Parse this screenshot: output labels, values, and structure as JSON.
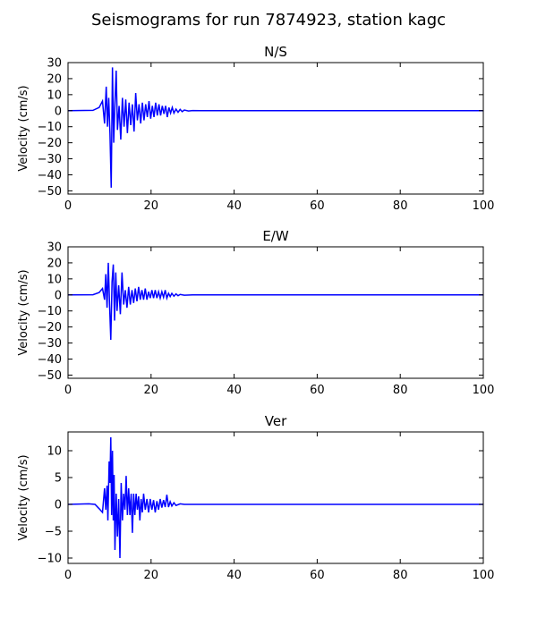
{
  "figure": {
    "title": "Seismograms for run 7874923, station kagc"
  },
  "chart_data": [
    {
      "type": "line",
      "title": "N/S",
      "xlabel": "",
      "ylabel": "Velocity (cm/s)",
      "xlim": [
        0,
        100
      ],
      "ylim": [
        -52,
        30
      ],
      "xticks": [
        0,
        20,
        40,
        60,
        80,
        100
      ],
      "yticks": [
        -50,
        -40,
        -30,
        -20,
        -10,
        0,
        10,
        20,
        30
      ],
      "grid": false,
      "color": "#0000ff",
      "series": [
        {
          "values": [
            [
              0,
              0
            ],
            [
              6,
              0.2
            ],
            [
              7.5,
              2
            ],
            [
              8.3,
              6
            ],
            [
              8.8,
              -8
            ],
            [
              9.2,
              15
            ],
            [
              9.5,
              -10
            ],
            [
              9.8,
              8
            ],
            [
              10.1,
              -14
            ],
            [
              10.4,
              -48
            ],
            [
              10.7,
              27
            ],
            [
              11,
              -20
            ],
            [
              11.3,
              5
            ],
            [
              11.6,
              25
            ],
            [
              11.9,
              -12
            ],
            [
              12.3,
              3
            ],
            [
              12.7,
              -18
            ],
            [
              13.1,
              8
            ],
            [
              13.5,
              -10
            ],
            [
              13.9,
              7
            ],
            [
              14.3,
              -14
            ],
            [
              14.7,
              5
            ],
            [
              15.1,
              -9
            ],
            [
              15.5,
              4
            ],
            [
              15.9,
              -13
            ],
            [
              16.3,
              11
            ],
            [
              16.7,
              -6
            ],
            [
              17.1,
              4
            ],
            [
              17.5,
              -8
            ],
            [
              17.9,
              5
            ],
            [
              18.3,
              -6
            ],
            [
              18.7,
              4
            ],
            [
              19.1,
              -4
            ],
            [
              19.5,
              6
            ],
            [
              19.9,
              -5
            ],
            [
              20.3,
              3
            ],
            [
              20.7,
              -4
            ],
            [
              21.1,
              5
            ],
            [
              21.5,
              -3
            ],
            [
              21.9,
              4
            ],
            [
              22.3,
              -3
            ],
            [
              22.7,
              3
            ],
            [
              23.1,
              -2
            ],
            [
              23.5,
              3
            ],
            [
              23.9,
              -4
            ],
            [
              24.3,
              2
            ],
            [
              24.7,
              -1.5
            ],
            [
              25.1,
              2
            ],
            [
              25.5,
              -1.5
            ],
            [
              26,
              1
            ],
            [
              26.5,
              -1
            ],
            [
              27,
              0.8
            ],
            [
              27.5,
              -0.6
            ],
            [
              28,
              0.4
            ],
            [
              29,
              -0.2
            ],
            [
              30,
              0.1
            ],
            [
              32,
              0
            ],
            [
              100,
              0
            ]
          ]
        }
      ]
    },
    {
      "type": "line",
      "title": "E/W",
      "xlabel": "",
      "ylabel": "Velocity (cm/s)",
      "xlim": [
        0,
        100
      ],
      "ylim": [
        -52,
        30
      ],
      "xticks": [
        0,
        20,
        40,
        60,
        80,
        100
      ],
      "yticks": [
        -50,
        -40,
        -30,
        -20,
        -10,
        0,
        10,
        20,
        30
      ],
      "grid": false,
      "color": "#0000ff",
      "series": [
        {
          "values": [
            [
              0,
              0
            ],
            [
              6,
              0.1
            ],
            [
              7.5,
              1.5
            ],
            [
              8.3,
              4
            ],
            [
              8.8,
              -3
            ],
            [
              9.1,
              13
            ],
            [
              9.4,
              -8
            ],
            [
              9.7,
              20
            ],
            [
              10.0,
              -6
            ],
            [
              10.3,
              -28
            ],
            [
              10.6,
              8
            ],
            [
              10.9,
              19
            ],
            [
              11.2,
              -16
            ],
            [
              11.5,
              14
            ],
            [
              11.8,
              -10
            ],
            [
              12.2,
              6
            ],
            [
              12.6,
              -12
            ],
            [
              13,
              14
            ],
            [
              13.4,
              -6
            ],
            [
              13.8,
              3
            ],
            [
              14.2,
              -8
            ],
            [
              14.6,
              5
            ],
            [
              15,
              -6
            ],
            [
              15.4,
              3
            ],
            [
              15.8,
              -5
            ],
            [
              16.2,
              4
            ],
            [
              16.6,
              -4
            ],
            [
              17,
              5
            ],
            [
              17.4,
              -3
            ],
            [
              17.8,
              3
            ],
            [
              18.2,
              -3
            ],
            [
              18.6,
              4
            ],
            [
              19,
              -3
            ],
            [
              19.4,
              2
            ],
            [
              19.8,
              -2
            ],
            [
              20.2,
              3
            ],
            [
              20.6,
              -2
            ],
            [
              21,
              3
            ],
            [
              21.4,
              -2
            ],
            [
              21.8,
              2
            ],
            [
              22.2,
              -2
            ],
            [
              22.6,
              2
            ],
            [
              23,
              -1.5
            ],
            [
              23.4,
              3
            ],
            [
              23.8,
              -2
            ],
            [
              24.2,
              1
            ],
            [
              24.6,
              -1
            ],
            [
              25,
              1
            ],
            [
              25.5,
              -0.8
            ],
            [
              26,
              0.6
            ],
            [
              26.5,
              -0.5
            ],
            [
              27,
              0.3
            ],
            [
              28,
              -0.2
            ],
            [
              30,
              0
            ],
            [
              100,
              0
            ]
          ]
        }
      ]
    },
    {
      "type": "line",
      "title": "Ver",
      "xlabel": "",
      "ylabel": "Velocity (cm/s)",
      "xlim": [
        0,
        100
      ],
      "ylim": [
        -11,
        13.5
      ],
      "xticks": [
        0,
        20,
        40,
        60,
        80,
        100
      ],
      "yticks": [
        -10,
        -5,
        0,
        5,
        10
      ],
      "grid": false,
      "color": "#0000ff",
      "series": [
        {
          "values": [
            [
              0,
              0
            ],
            [
              5,
              0.1
            ],
            [
              6.5,
              0
            ],
            [
              7.5,
              -0.8
            ],
            [
              8.3,
              -1.5
            ],
            [
              8.8,
              3
            ],
            [
              9.1,
              -1
            ],
            [
              9.4,
              3.5
            ],
            [
              9.6,
              -3
            ],
            [
              9.9,
              8
            ],
            [
              10.1,
              4
            ],
            [
              10.3,
              12.5
            ],
            [
              10.5,
              -2
            ],
            [
              10.7,
              10
            ],
            [
              10.9,
              -3
            ],
            [
              11.1,
              5.5
            ],
            [
              11.3,
              -8.5
            ],
            [
              11.6,
              2
            ],
            [
              11.9,
              -6
            ],
            [
              12.2,
              1
            ],
            [
              12.5,
              -10
            ],
            [
              12.8,
              4
            ],
            [
              13.1,
              -3
            ],
            [
              13.4,
              2
            ],
            [
              13.7,
              -1
            ],
            [
              14,
              5.3
            ],
            [
              14.3,
              -2
            ],
            [
              14.6,
              3
            ],
            [
              14.9,
              -2
            ],
            [
              15.2,
              2
            ],
            [
              15.5,
              -5.3
            ],
            [
              15.8,
              2
            ],
            [
              16.1,
              -2
            ],
            [
              16.4,
              2
            ],
            [
              16.7,
              -1
            ],
            [
              17,
              1.5
            ],
            [
              17.3,
              -3
            ],
            [
              17.6,
              1
            ],
            [
              17.9,
              -1.5
            ],
            [
              18.2,
              2
            ],
            [
              18.6,
              -1
            ],
            [
              19,
              1
            ],
            [
              19.4,
              -1.5
            ],
            [
              19.8,
              1
            ],
            [
              20.2,
              -1
            ],
            [
              20.6,
              0.8
            ],
            [
              21,
              -1.5
            ],
            [
              21.4,
              0.6
            ],
            [
              21.8,
              -1
            ],
            [
              22.2,
              1
            ],
            [
              22.6,
              -0.6
            ],
            [
              23,
              0.8
            ],
            [
              23.4,
              -0.5
            ],
            [
              23.8,
              1.8
            ],
            [
              24.2,
              -0.5
            ],
            [
              24.6,
              0.5
            ],
            [
              25,
              -0.3
            ],
            [
              25.5,
              0.3
            ],
            [
              26,
              -0.2
            ],
            [
              27,
              0.1
            ],
            [
              28,
              0
            ],
            [
              100,
              0
            ]
          ]
        }
      ]
    }
  ]
}
